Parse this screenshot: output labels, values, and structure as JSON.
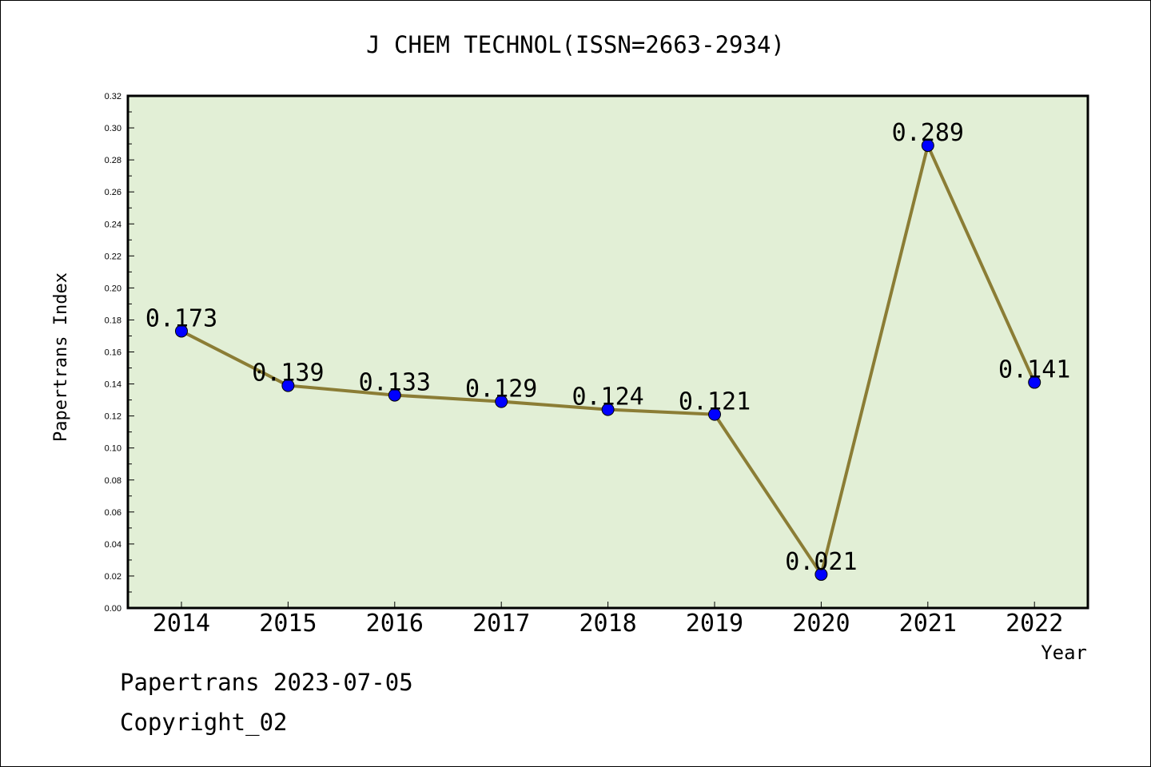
{
  "footer": {
    "line1": "Papertrans 2023-07-05",
    "line2": "Copyright_02"
  },
  "chart_data": {
    "type": "line",
    "title": "J CHEM TECHNOL(ISSN=2663-2934)",
    "xlabel": "Year",
    "ylabel": "Papertrans Index",
    "categories": [
      "2014",
      "2015",
      "2016",
      "2017",
      "2018",
      "2019",
      "2020",
      "2021",
      "2022"
    ],
    "series": [
      {
        "values": [
          0.173,
          0.139,
          0.133,
          0.129,
          0.124,
          0.121,
          0.021,
          0.289,
          0.141
        ],
        "data_labels": [
          "0.173",
          "0.139",
          "0.133",
          "0.129",
          "0.124",
          "0.121",
          "0.021",
          "0.289",
          "0.141"
        ]
      }
    ],
    "ylim": [
      0,
      0.32
    ],
    "yticks": [
      "0.00",
      "0.02",
      "0.04",
      "0.06",
      "0.08",
      "0.10",
      "0.12",
      "0.14",
      "0.16",
      "0.18",
      "0.20",
      "0.22",
      "0.24",
      "0.26",
      "0.28",
      "0.30",
      "0.32"
    ],
    "grid": false,
    "legend": "none",
    "colors": {
      "plot_background": "#e2efd6",
      "line": "#8b7d35",
      "marker": "#0000ff"
    }
  }
}
